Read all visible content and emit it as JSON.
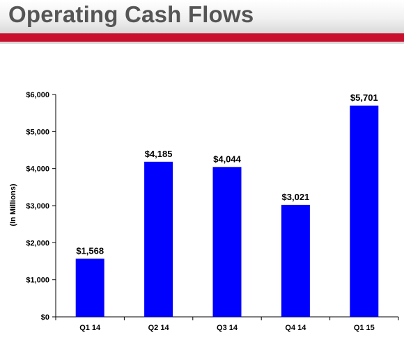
{
  "header": {
    "title": "Operating Cash Flows"
  },
  "colors": {
    "bar": "#0000ff",
    "accent": "#c8102e"
  },
  "chart_data": {
    "type": "bar",
    "title": "Operating Cash Flows",
    "xlabel": "",
    "ylabel": "(In Millions)",
    "categories": [
      "Q1 14",
      "Q2 14",
      "Q3 14",
      "Q4 14",
      "Q1 15"
    ],
    "values": [
      1568,
      4185,
      4044,
      3021,
      5701
    ],
    "data_labels": [
      "$1,568",
      "$4,185",
      "$4,044",
      "$3,021",
      "$5,701"
    ],
    "ylim": [
      0,
      6000
    ],
    "yticks": [
      0,
      1000,
      2000,
      3000,
      4000,
      5000,
      6000
    ],
    "ytick_labels": [
      "$0",
      "$1,000",
      "$2,000",
      "$3,000",
      "$4,000",
      "$5,000",
      "$6,000"
    ],
    "grid": false,
    "legend": "none"
  }
}
